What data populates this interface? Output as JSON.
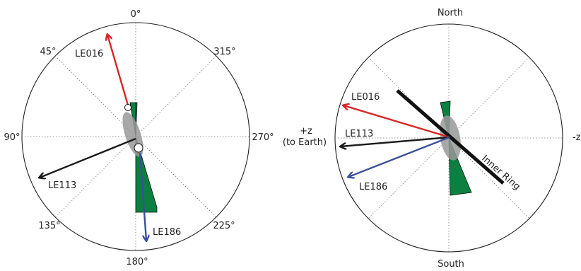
{
  "colors": {
    "red": "#d62728",
    "blue": "#3b4f9a",
    "black": "#1a1a1a",
    "green": "#0b8040",
    "gray": "#999999",
    "ring": "#111111",
    "circle": "#222222",
    "grid": "#777777"
  },
  "left": {
    "angle_labels": {
      "a0": "0°",
      "a45": "45°",
      "a90": "90°",
      "a135": "135°",
      "a180": "180°",
      "a225": "225°",
      "a270": "270°",
      "a315": "315°"
    },
    "arrows": {
      "le016": "LE016",
      "le113": "LE113",
      "le186": "LE186"
    }
  },
  "right": {
    "north": "North",
    "south": "South",
    "plus_z": "+z",
    "to_earth": "(to Earth)",
    "minus_z": "-z",
    "inner_ring": "Inner Ring",
    "arrows": {
      "le016": "LE016",
      "le113": "LE113",
      "le186": "LE186"
    }
  }
}
